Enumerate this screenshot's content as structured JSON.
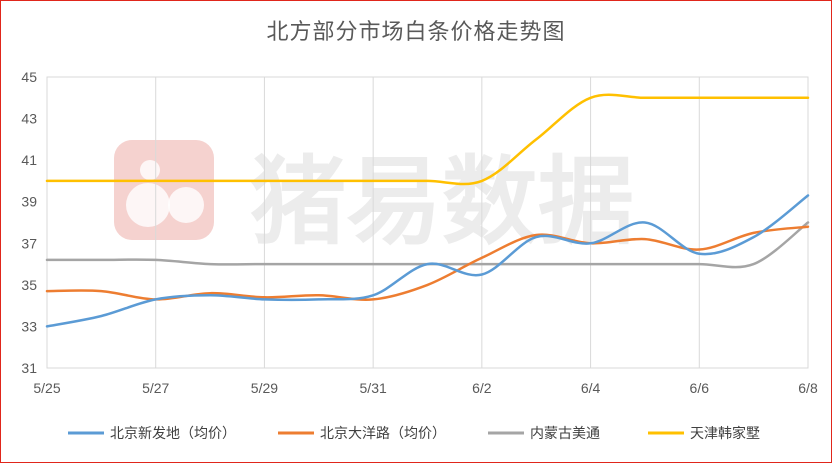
{
  "chart_data": {
    "type": "line",
    "title": "北方部分市场白条价格走势图",
    "x": [
      "5/25",
      "5/26",
      "5/27",
      "5/28",
      "5/29",
      "5/30",
      "5/31",
      "6/1",
      "6/2",
      "6/3",
      "6/4",
      "6/5",
      "6/6",
      "6/7",
      "6/8"
    ],
    "x_tick_labels": [
      "5/25",
      "5/27",
      "5/29",
      "5/31",
      "6/2",
      "6/4",
      "6/6",
      "6/8"
    ],
    "ylim": [
      31,
      45
    ],
    "y_ticks": [
      31,
      33,
      35,
      37,
      39,
      41,
      43,
      45
    ],
    "grid": "vertical",
    "legend_position": "bottom",
    "series": [
      {
        "name": "北京新发地（均价）",
        "color": "#5b9bd5",
        "values": [
          33.0,
          33.5,
          34.3,
          34.5,
          34.3,
          34.3,
          34.5,
          36.0,
          35.5,
          37.3,
          37.0,
          38.0,
          36.5,
          37.3,
          39.3
        ]
      },
      {
        "name": "北京大洋路（均价）",
        "color": "#ed7d31",
        "values": [
          34.7,
          34.7,
          34.3,
          34.6,
          34.4,
          34.5,
          34.3,
          35.0,
          36.3,
          37.4,
          37.0,
          37.2,
          36.7,
          37.5,
          37.8
        ]
      },
      {
        "name": "内蒙古美通",
        "color": "#a5a5a5",
        "values": [
          36.2,
          36.2,
          36.2,
          36.0,
          36.0,
          36.0,
          36.0,
          36.0,
          36.0,
          36.0,
          36.0,
          36.0,
          36.0,
          36.0,
          38.0
        ]
      },
      {
        "name": "天津韩家墅",
        "color": "#ffc000",
        "values": [
          40.0,
          40.0,
          40.0,
          40.0,
          40.0,
          40.0,
          40.0,
          40.0,
          40.0,
          42.0,
          44.0,
          44.0,
          44.0,
          44.0,
          44.0
        ]
      }
    ]
  },
  "watermark": {
    "text": "猪易数据",
    "icon": "pig-logo-icon"
  }
}
